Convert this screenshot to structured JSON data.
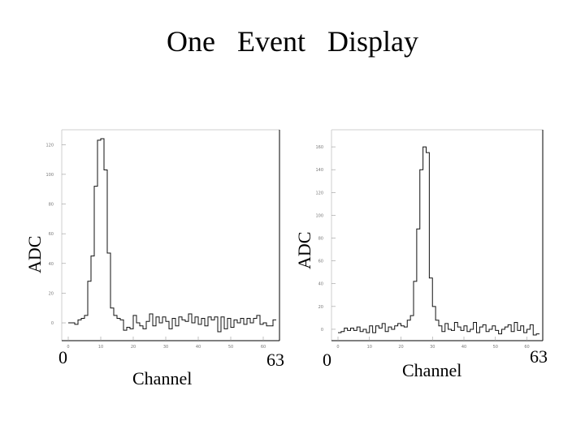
{
  "title": "One   Event   Display",
  "chart_data": [
    {
      "type": "line",
      "ylabel": "ADC",
      "xlabel": "Channel",
      "x_range_labels": [
        "0",
        "63"
      ],
      "x_tick_labels": [
        "0",
        "10",
        "20",
        "30",
        "40",
        "50",
        "60"
      ],
      "y_tick_labels": [
        "0",
        "20",
        "40",
        "60",
        "80",
        "100",
        "120"
      ],
      "xlim": [
        0,
        63
      ],
      "ylim": [
        -12,
        130
      ],
      "x": [
        0,
        1,
        2,
        3,
        4,
        5,
        6,
        7,
        8,
        9,
        10,
        11,
        12,
        13,
        14,
        15,
        16,
        17,
        18,
        19,
        20,
        21,
        22,
        23,
        24,
        25,
        26,
        27,
        28,
        29,
        30,
        31,
        32,
        33,
        34,
        35,
        36,
        37,
        38,
        39,
        40,
        41,
        42,
        43,
        44,
        45,
        46,
        47,
        48,
        49,
        50,
        51,
        52,
        53,
        54,
        55,
        56,
        57,
        58,
        59,
        60,
        61,
        62,
        63
      ],
      "values": [
        0,
        0,
        -1,
        2,
        3,
        5,
        28,
        45,
        92,
        123,
        124,
        103,
        47,
        10,
        5,
        3,
        2,
        -5,
        -3,
        -4,
        5,
        0,
        -2,
        -4,
        1,
        6,
        -2,
        4,
        0,
        4,
        1,
        -4,
        3,
        -2,
        4,
        2,
        1,
        6,
        0,
        4,
        -1,
        3,
        -2,
        4,
        2,
        4,
        -6,
        4,
        -4,
        3,
        -3,
        2,
        0,
        3,
        -1,
        3,
        0,
        3,
        5,
        -1,
        0,
        -2,
        -2,
        2
      ]
    },
    {
      "type": "line",
      "ylabel": "ADC",
      "xlabel": "Channel",
      "x_range_labels": [
        "0",
        "63"
      ],
      "x_tick_labels": [
        "0",
        "10",
        "20",
        "30",
        "40",
        "50",
        "60"
      ],
      "y_tick_labels": [
        "0",
        "20",
        "40",
        "60",
        "80",
        "100",
        "120",
        "140",
        "160"
      ],
      "xlim": [
        0,
        63
      ],
      "ylim": [
        -10,
        175
      ],
      "x": [
        0,
        1,
        2,
        3,
        4,
        5,
        6,
        7,
        8,
        9,
        10,
        11,
        12,
        13,
        14,
        15,
        16,
        17,
        18,
        19,
        20,
        21,
        22,
        23,
        24,
        25,
        26,
        27,
        28,
        29,
        30,
        31,
        32,
        33,
        34,
        35,
        36,
        37,
        38,
        39,
        40,
        41,
        42,
        43,
        44,
        45,
        46,
        47,
        48,
        49,
        50,
        51,
        52,
        53,
        54,
        55,
        56,
        57,
        58,
        59,
        60,
        61,
        62,
        63
      ],
      "values": [
        -3,
        -2,
        1,
        -1,
        1,
        -1,
        2,
        -2,
        0,
        -3,
        3,
        -3,
        3,
        1,
        5,
        -2,
        2,
        0,
        3,
        5,
        3,
        2,
        8,
        12,
        42,
        88,
        140,
        160,
        155,
        45,
        20,
        8,
        3,
        -2,
        5,
        0,
        -1,
        6,
        2,
        -1,
        3,
        -2,
        0,
        6,
        -3,
        2,
        4,
        -2,
        0,
        3,
        -1,
        -4,
        0,
        2,
        4,
        -2,
        6,
        -1,
        3,
        -3,
        0,
        4,
        -5,
        -4
      ]
    }
  ]
}
